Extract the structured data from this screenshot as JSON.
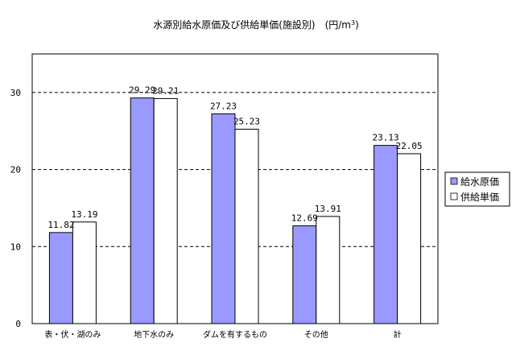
{
  "chart_data": {
    "type": "bar",
    "title": "水源別給水原価及び供給単価(施設別)　(円/m",
    "title_sup": "3",
    "title_close": ")",
    "categories": [
      "表・伏・湖のみ",
      "地下水のみ",
      "ダムを有するもの",
      "その他",
      "計"
    ],
    "series": [
      {
        "name": "給水原価",
        "values": [
          11.82,
          29.29,
          27.23,
          12.69,
          23.13
        ],
        "color": "#9999ff"
      },
      {
        "name": "供給単価",
        "values": [
          13.19,
          29.21,
          25.23,
          13.91,
          22.05
        ],
        "color": "#ffffff"
      }
    ],
    "value_labels": [
      [
        "11.82",
        "29.29",
        "27.23",
        "12.69",
        "23.13"
      ],
      [
        "13.19",
        "29.21",
        "25.23",
        "13.91",
        "22.05"
      ]
    ],
    "ylim": [
      0,
      35
    ],
    "yticks": [
      "0",
      "10",
      "20",
      "30"
    ],
    "ytick_values": [
      0,
      10,
      20,
      30
    ],
    "grid": "dashed horizontal",
    "legend_position": "right"
  }
}
